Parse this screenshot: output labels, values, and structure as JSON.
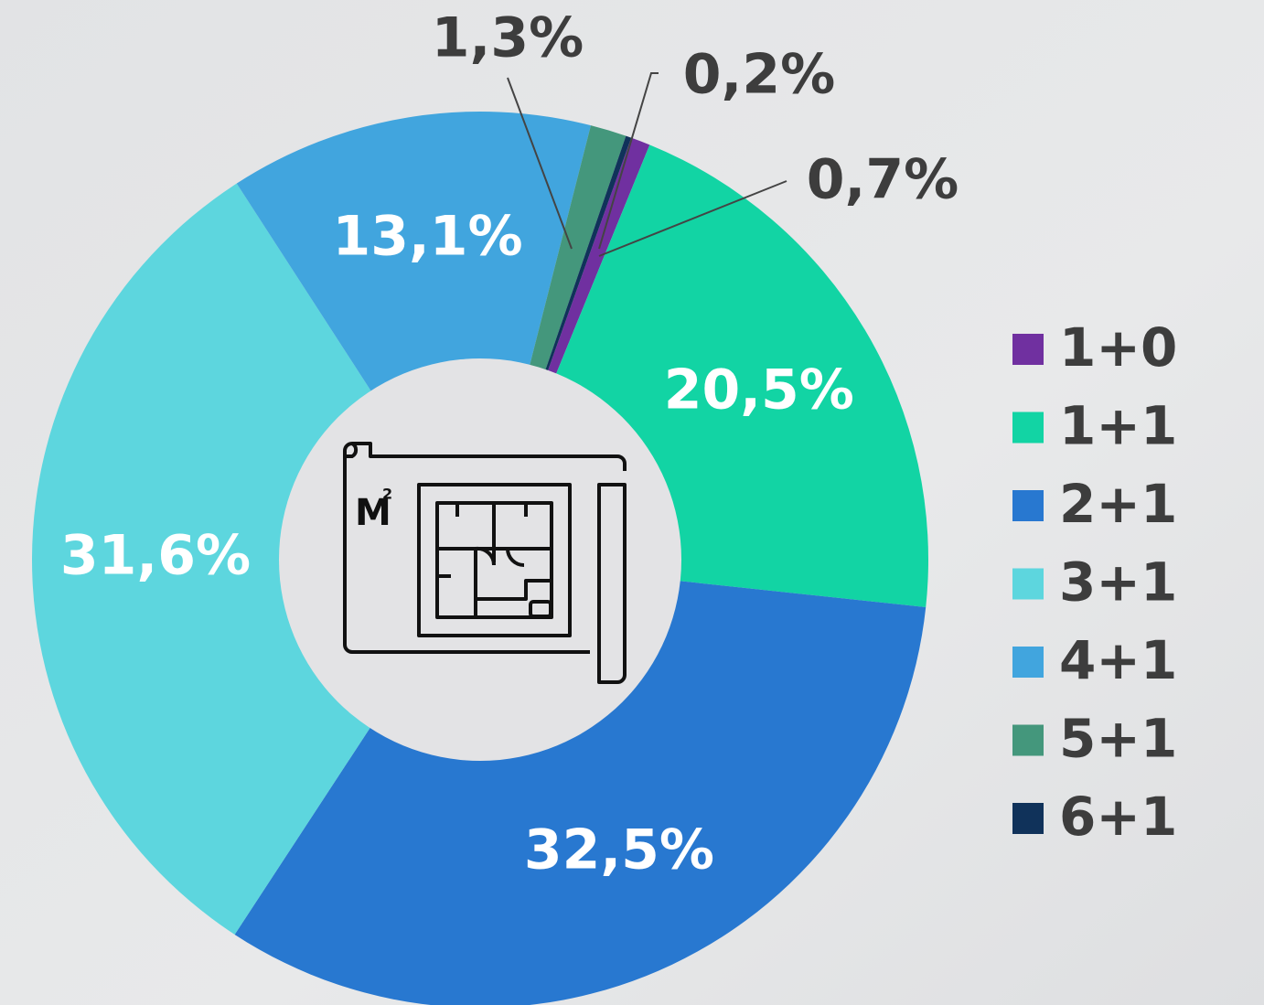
{
  "chart_data": {
    "type": "donut",
    "categories": [
      "1+0",
      "1+1",
      "2+1",
      "3+1",
      "4+1",
      "5+1",
      "6+1"
    ],
    "values": [
      0.7,
      20.5,
      32.5,
      31.6,
      13.1,
      1.3,
      0.2
    ],
    "value_labels": [
      "0,7%",
      "20,5%",
      "32,5%",
      "31,6%",
      "13,1%",
      "1,3%",
      "0,2%"
    ],
    "colors": [
      "#7030a0",
      "#12d4a4",
      "#2878d0",
      "#5dd6de",
      "#41a5de",
      "#44977c",
      "#10325a"
    ],
    "center_text": "M",
    "legend": "right"
  }
}
